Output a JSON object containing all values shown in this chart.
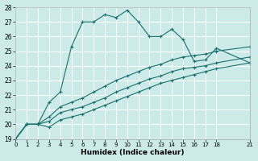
{
  "title": "",
  "xlabel": "Humidex (Indice chaleur)",
  "bg_color": "#cceae8",
  "line_color": "#1a7070",
  "grid_color": "#ffffff",
  "xlim": [
    0,
    21
  ],
  "ylim": [
    19,
    28
  ],
  "yticks": [
    19,
    20,
    21,
    22,
    23,
    24,
    25,
    26,
    27,
    28
  ],
  "xticks": [
    0,
    1,
    2,
    3,
    4,
    5,
    6,
    7,
    8,
    9,
    10,
    11,
    12,
    13,
    14,
    15,
    16,
    17,
    18,
    21
  ],
  "xtick_labels": [
    "0",
    "1",
    "2",
    "3",
    "4",
    "5",
    "6",
    "7",
    "8",
    "9",
    "10",
    "11",
    "12",
    "13",
    "14",
    "15",
    "16",
    "17",
    "18",
    "21"
  ],
  "series": [
    {
      "x": [
        0,
        1,
        2,
        3,
        4,
        5,
        6,
        7,
        8,
        9,
        10,
        11,
        12,
        13,
        14,
        15,
        16,
        17,
        18,
        21
      ],
      "y": [
        19,
        20,
        20,
        21.5,
        22.2,
        25.3,
        27.0,
        27.0,
        27.5,
        27.3,
        27.8,
        27.0,
        26.0,
        26.0,
        26.5,
        25.8,
        24.3,
        24.4,
        25.2,
        24.2
      ]
    },
    {
      "x": [
        0,
        1,
        2,
        3,
        4,
        5,
        6,
        7,
        8,
        9,
        10,
        11,
        12,
        13,
        14,
        15,
        16,
        17,
        18,
        21
      ],
      "y": [
        19,
        20,
        20,
        20.5,
        21.2,
        21.5,
        21.8,
        22.2,
        22.6,
        23.0,
        23.3,
        23.6,
        23.9,
        24.1,
        24.4,
        24.6,
        24.7,
        24.8,
        25.0,
        25.3
      ]
    },
    {
      "x": [
        0,
        1,
        2,
        3,
        4,
        5,
        6,
        7,
        8,
        9,
        10,
        11,
        12,
        13,
        14,
        15,
        16,
        17,
        18,
        21
      ],
      "y": [
        19,
        20,
        20,
        20.2,
        20.8,
        21.0,
        21.2,
        21.5,
        21.8,
        22.2,
        22.5,
        22.8,
        23.1,
        23.3,
        23.6,
        23.8,
        23.9,
        24.0,
        24.2,
        24.6
      ]
    },
    {
      "x": [
        0,
        1,
        2,
        3,
        4,
        5,
        6,
        7,
        8,
        9,
        10,
        11,
        12,
        13,
        14,
        15,
        16,
        17,
        18,
        21
      ],
      "y": [
        19,
        20,
        20,
        19.8,
        20.3,
        20.5,
        20.7,
        21.0,
        21.3,
        21.6,
        21.9,
        22.2,
        22.5,
        22.8,
        23.0,
        23.2,
        23.4,
        23.6,
        23.8,
        24.2
      ]
    }
  ]
}
